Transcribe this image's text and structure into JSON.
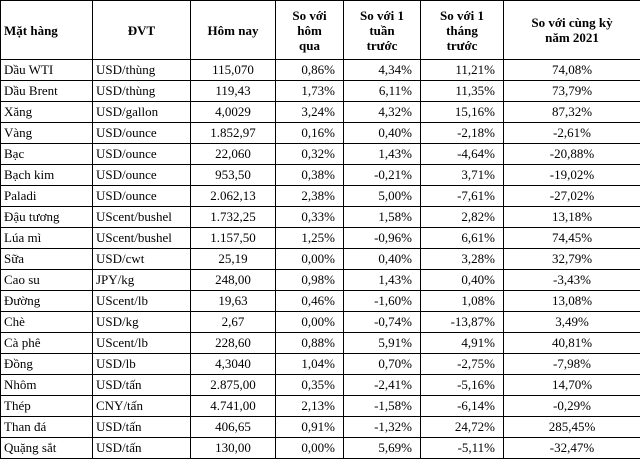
{
  "table": {
    "header": [
      [
        "Mặt hàng"
      ],
      [
        "ĐVT"
      ],
      [
        "Hôm nay"
      ],
      [
        "So với",
        "hôm",
        "qua"
      ],
      [
        "So với 1",
        "tuần",
        "trước"
      ],
      [
        "So với 1",
        "tháng",
        "trước"
      ],
      [
        "So với cùng kỳ",
        "năm 2021"
      ]
    ],
    "rows": [
      [
        "Dầu WTI",
        "USD/thùng",
        "115,070",
        "0,86%",
        "4,34%",
        "11,21%",
        "74,08%"
      ],
      [
        "Dầu Brent",
        "USD/thùng",
        "119,43",
        "1,73%",
        "6,11%",
        "11,35%",
        "73,79%"
      ],
      [
        "Xăng",
        "USD/gallon",
        "4,0029",
        "3,24%",
        "4,32%",
        "15,16%",
        "87,32%"
      ],
      [
        "Vàng",
        "USD/ounce",
        "1.852,97",
        "0,16%",
        "0,40%",
        "-2,18%",
        "-2,61%"
      ],
      [
        "Bạc",
        "USD/ounce",
        "22,060",
        "0,32%",
        "1,43%",
        "-4,64%",
        "-20,88%"
      ],
      [
        "Bạch kim",
        "USD/ounce",
        "953,50",
        "0,38%",
        "-0,21%",
        "3,71%",
        "-19,02%"
      ],
      [
        "Paladi",
        "USD/ounce",
        "2.062,13",
        "2,38%",
        "5,00%",
        "-7,61%",
        "-27,02%"
      ],
      [
        "Đậu tương",
        "UScent/bushel",
        "1.732,25",
        "0,33%",
        "1,58%",
        "2,82%",
        "13,18%"
      ],
      [
        "Lúa mì",
        "UScent/bushel",
        "1.157,50",
        "1,25%",
        "-0,96%",
        "6,61%",
        "74,45%"
      ],
      [
        "Sữa",
        "USD/cwt",
        "25,19",
        "0,00%",
        "0,40%",
        "3,28%",
        "32,79%"
      ],
      [
        "Cao su",
        "JPY/kg",
        "248,00",
        "0,98%",
        "1,43%",
        "0,40%",
        "-3,43%"
      ],
      [
        "Đường",
        "UScent/lb",
        "19,63",
        "0,46%",
        "-1,60%",
        "1,08%",
        "13,08%"
      ],
      [
        "Chè",
        "USD/kg",
        "2,67",
        "0,00%",
        "-0,74%",
        "-13,87%",
        "3,49%"
      ],
      [
        "Cà phê",
        "UScent/lb",
        "228,60",
        "0,88%",
        "5,91%",
        "4,91%",
        "40,81%"
      ],
      [
        "Đồng",
        "USD/lb",
        "4,3040",
        "1,04%",
        "0,70%",
        "-2,75%",
        "-7,98%"
      ],
      [
        "Nhôm",
        "USD/tấn",
        "2.875,00",
        "0,35%",
        "-2,41%",
        "-5,16%",
        "14,70%"
      ],
      [
        "Thép",
        "CNY/tấn",
        "4.741,00",
        "2,13%",
        "-1,58%",
        "-6,14%",
        "-0,29%"
      ],
      [
        "Than đá",
        "USD/tấn",
        "406,65",
        "0,91%",
        "-1,32%",
        "24,72%",
        "285,45%"
      ],
      [
        "Quặng sắt",
        "USD/tấn",
        "130,00",
        "0,00%",
        "5,69%",
        "-5,11%",
        "-32,47%"
      ]
    ]
  }
}
